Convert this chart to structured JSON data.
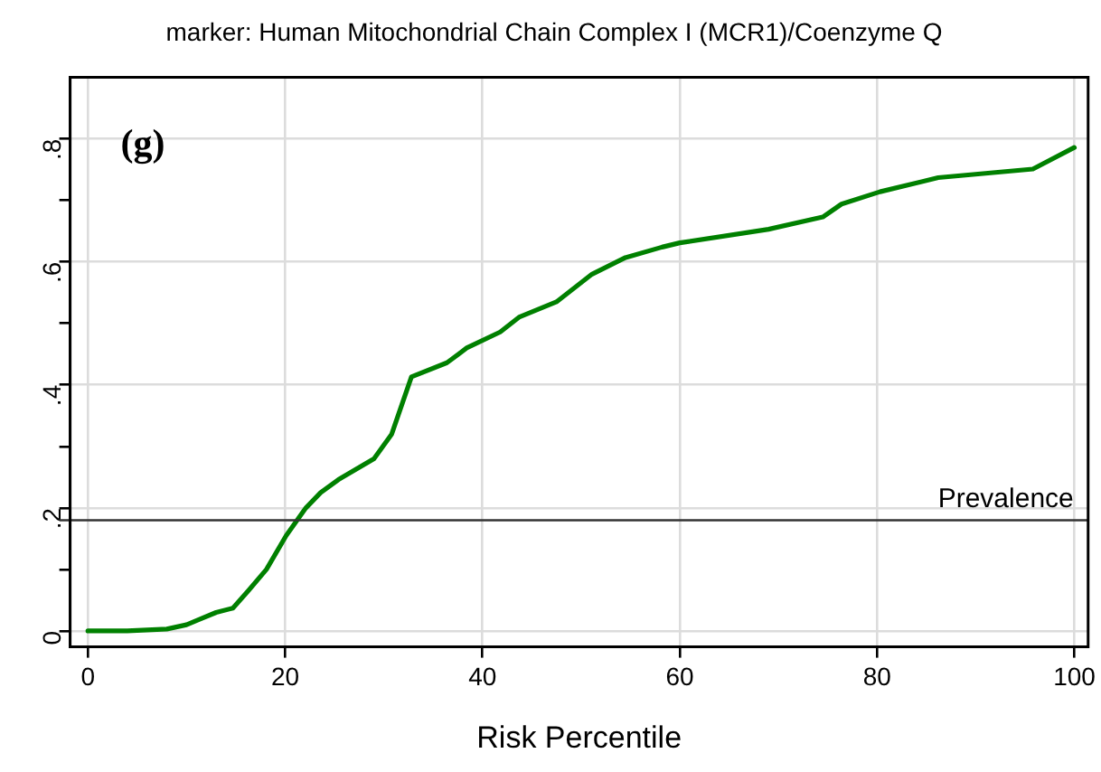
{
  "chart_data": {
    "type": "line",
    "title": "marker: Human Mitochondrial Chain Complex I (MCR1)/Coenzyme Q",
    "xlabel": "Risk Percentile",
    "annotations": [
      "(g)"
    ],
    "series": [
      {
        "color": "#008000",
        "x": [
          0,
          4,
          8,
          10,
          11.2,
          13,
          14.7,
          16.3,
          18.1,
          20.1,
          22.1,
          23.6,
          25.4,
          29,
          30.8,
          32.8,
          36.4,
          38.4,
          41.8,
          43.7,
          47.5,
          51.1,
          54.5,
          58.2,
          60,
          69,
          74.5,
          76.4,
          80.3,
          86.2,
          95.8,
          100
        ],
        "values": [
          0,
          0,
          0.003,
          0.01,
          0.018,
          0.03,
          0.037,
          0.066,
          0.1,
          0.155,
          0.2,
          0.225,
          0.246,
          0.28,
          0.32,
          0.413,
          0.436,
          0.46,
          0.486,
          0.51,
          0.535,
          0.58,
          0.607,
          0.624,
          0.631,
          0.653,
          0.673,
          0.694,
          0.714,
          0.737,
          0.751,
          0.786
        ]
      }
    ],
    "xlim": [
      -1.8,
      101.4
    ],
    "xticks": [
      0,
      20,
      40,
      60,
      80,
      100
    ],
    "ylim": [
      -0.026,
      0.9
    ],
    "yticks": [
      {
        "value": 0,
        "label": "0"
      },
      {
        "value": 0.1,
        "label": null
      },
      {
        "value": 0.2,
        "label": ".2"
      },
      {
        "value": 0.3,
        "label": null
      },
      {
        "value": 0.4,
        "label": ".4"
      },
      {
        "value": 0.5,
        "label": null
      },
      {
        "value": 0.6,
        "label": ".6"
      },
      {
        "value": 0.7,
        "label": null
      },
      {
        "value": 0.8,
        "label": ".8"
      }
    ],
    "ref_lines": [
      {
        "axis": "y",
        "value": 0.18,
        "label": "Prevalence",
        "color": "#333333"
      }
    ],
    "grid": true,
    "legend": false,
    "marker": "none",
    "line_style": "solid"
  }
}
